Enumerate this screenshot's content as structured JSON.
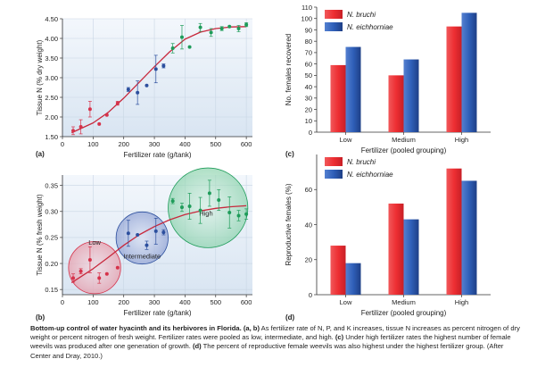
{
  "chart_data": [
    {
      "panel": "(a)",
      "type": "scatter",
      "xlabel": "Fertilizer rate (g/tank)",
      "ylabel": "Tissue N (% dry weight)",
      "xlim": [
        0,
        620
      ],
      "ylim": [
        1.5,
        4.5
      ],
      "xticks": [
        0,
        100,
        200,
        300,
        400,
        500,
        600
      ],
      "yticks": [
        1.5,
        2.0,
        2.5,
        3.0,
        3.5,
        4.0,
        4.5
      ],
      "grid": true,
      "points": [
        {
          "x": 35,
          "y": 1.65,
          "err": 0.1,
          "group": "low"
        },
        {
          "x": 60,
          "y": 1.75,
          "err": 0.18,
          "group": "low"
        },
        {
          "x": 90,
          "y": 2.2,
          "err": 0.2,
          "group": "low"
        },
        {
          "x": 120,
          "y": 1.82,
          "err": 0.0,
          "group": "low"
        },
        {
          "x": 145,
          "y": 2.05,
          "err": 0.0,
          "group": "low"
        },
        {
          "x": 180,
          "y": 2.35,
          "err": 0.05,
          "group": "low"
        },
        {
          "x": 215,
          "y": 2.7,
          "err": 0.05,
          "group": "medium"
        },
        {
          "x": 245,
          "y": 2.62,
          "err": 0.3,
          "group": "medium"
        },
        {
          "x": 275,
          "y": 2.8,
          "err": 0.0,
          "group": "medium"
        },
        {
          "x": 305,
          "y": 3.22,
          "err": 0.35,
          "group": "medium"
        },
        {
          "x": 330,
          "y": 3.3,
          "err": 0.05,
          "group": "medium"
        },
        {
          "x": 360,
          "y": 3.75,
          "err": 0.12,
          "group": "high"
        },
        {
          "x": 390,
          "y": 4.03,
          "err": 0.3,
          "group": "high"
        },
        {
          "x": 415,
          "y": 3.78,
          "err": 0.0,
          "group": "high"
        },
        {
          "x": 450,
          "y": 4.28,
          "err": 0.1,
          "group": "high"
        },
        {
          "x": 485,
          "y": 4.15,
          "err": 0.1,
          "group": "high"
        },
        {
          "x": 520,
          "y": 4.25,
          "err": 0.05,
          "group": "high"
        },
        {
          "x": 545,
          "y": 4.3,
          "err": 0.0,
          "group": "high"
        },
        {
          "x": 575,
          "y": 4.25,
          "err": 0.08,
          "group": "high"
        },
        {
          "x": 600,
          "y": 4.35,
          "err": 0.05,
          "group": "high"
        }
      ],
      "curve": {
        "x": [
          30,
          100,
          150,
          200,
          250,
          300,
          350,
          400,
          450,
          500,
          550,
          600
        ],
        "y": [
          1.6,
          1.85,
          2.12,
          2.48,
          2.88,
          3.28,
          3.66,
          3.98,
          4.16,
          4.25,
          4.29,
          4.3
        ]
      }
    },
    {
      "panel": "(b)",
      "type": "scatter",
      "xlabel": "Fertilizer rate (g/tank)",
      "ylabel": "Tissue N (% fresh weight)",
      "xlim": [
        0,
        620
      ],
      "ylim": [
        0.14,
        0.37
      ],
      "xticks": [
        0,
        100,
        200,
        300,
        400,
        500,
        600
      ],
      "yticks": [
        0.15,
        0.2,
        0.25,
        0.3,
        0.35
      ],
      "grid": true,
      "points": [
        {
          "x": 35,
          "y": 0.172,
          "err": 0.008,
          "group": "low"
        },
        {
          "x": 60,
          "y": 0.185,
          "err": 0.005,
          "group": "low"
        },
        {
          "x": 90,
          "y": 0.207,
          "err": 0.025,
          "group": "low"
        },
        {
          "x": 120,
          "y": 0.172,
          "err": 0.01,
          "group": "low"
        },
        {
          "x": 145,
          "y": 0.18,
          "err": 0.0,
          "group": "low"
        },
        {
          "x": 180,
          "y": 0.192,
          "err": 0.0,
          "group": "low"
        },
        {
          "x": 215,
          "y": 0.258,
          "err": 0.025,
          "group": "medium"
        },
        {
          "x": 245,
          "y": 0.255,
          "err": 0.0,
          "group": "medium"
        },
        {
          "x": 275,
          "y": 0.235,
          "err": 0.008,
          "group": "medium"
        },
        {
          "x": 305,
          "y": 0.262,
          "err": 0.025,
          "group": "medium"
        },
        {
          "x": 330,
          "y": 0.26,
          "err": 0.005,
          "group": "medium"
        },
        {
          "x": 360,
          "y": 0.32,
          "err": 0.005,
          "group": "high"
        },
        {
          "x": 390,
          "y": 0.308,
          "err": 0.008,
          "group": "high"
        },
        {
          "x": 415,
          "y": 0.31,
          "err": 0.025,
          "group": "high"
        },
        {
          "x": 450,
          "y": 0.302,
          "err": 0.025,
          "group": "high"
        },
        {
          "x": 480,
          "y": 0.335,
          "err": 0.025,
          "group": "high"
        },
        {
          "x": 510,
          "y": 0.322,
          "err": 0.02,
          "group": "high"
        },
        {
          "x": 545,
          "y": 0.298,
          "err": 0.03,
          "group": "high"
        },
        {
          "x": 575,
          "y": 0.292,
          "err": 0.01,
          "group": "high"
        },
        {
          "x": 600,
          "y": 0.295,
          "err": 0.01,
          "group": "high"
        }
      ],
      "curve": {
        "x": [
          30,
          100,
          150,
          200,
          250,
          300,
          350,
          400,
          450,
          500,
          550,
          600
        ],
        "y": [
          0.163,
          0.19,
          0.212,
          0.235,
          0.255,
          0.271,
          0.284,
          0.294,
          0.301,
          0.306,
          0.309,
          0.311
        ]
      },
      "groups": [
        {
          "label": "Low",
          "cx": 105,
          "cy": 0.192,
          "rx": 85
        },
        {
          "label": "Intermediate",
          "cx": 260,
          "cy": 0.249,
          "rx": 85
        },
        {
          "label": "High",
          "cx": 475,
          "cy": 0.307,
          "rx": 130
        }
      ]
    },
    {
      "panel": "(c)",
      "type": "bar",
      "xlabel": "Fertilizer (pooled grouping)",
      "ylabel": "No. females recovered",
      "categories": [
        "Low",
        "Medium",
        "High"
      ],
      "ylim": [
        0,
        110
      ],
      "yticks": [
        0,
        10,
        20,
        30,
        40,
        50,
        60,
        70,
        80,
        90,
        100,
        110
      ],
      "legend_position": "top-left",
      "series": [
        {
          "name": "N. bruchi",
          "color": "#e8363a",
          "values": [
            59,
            50,
            93
          ]
        },
        {
          "name": "N. eichhorniae",
          "color": "#2f5fb8",
          "values": [
            75,
            64,
            105
          ]
        }
      ]
    },
    {
      "panel": "(d)",
      "type": "bar",
      "xlabel": "Fertilizer (pooled grouping)",
      "ylabel": "Reproductive females (%)",
      "categories": [
        "Low",
        "Medium",
        "High"
      ],
      "ylim": [
        0,
        80
      ],
      "yticks": [
        0,
        20,
        40,
        60
      ],
      "legend_position": "top-left",
      "series": [
        {
          "name": "N. bruchi",
          "color": "#e8363a",
          "values": [
            28,
            52,
            72
          ]
        },
        {
          "name": "N. eichhorniae",
          "color": "#2f5fb8",
          "values": [
            18,
            43,
            65
          ]
        }
      ]
    }
  ],
  "caption": {
    "title": "Bottom-up control of water hyacinth and its herbivores in Florida.",
    "a_b": "(a, b)",
    "text1": " As fertilizer rate of N, P, and K increases, tissue N increases as percent nitrogen of dry weight or percent nitrogen of fresh weight. Fertilizer rates were pooled as low, intermediate, and high. ",
    "c": "(c)",
    "text2": " Under high fertilizer rates the highest number of female weevils was produced after one generation of growth. ",
    "d": "(d)",
    "text3": " The percent of reproductive female weevils was also highest under the highest fertilizer group. (After Center and Dray, 2010.)"
  },
  "colors": {
    "low": "#d6324a",
    "medium": "#2c4f9e",
    "high": "#1f9c5a",
    "curve": "#c8283c",
    "plot_bg_top": "#f2f6fb",
    "plot_bg_bottom": "#dde8f3",
    "grid": "#c9d6e4"
  }
}
